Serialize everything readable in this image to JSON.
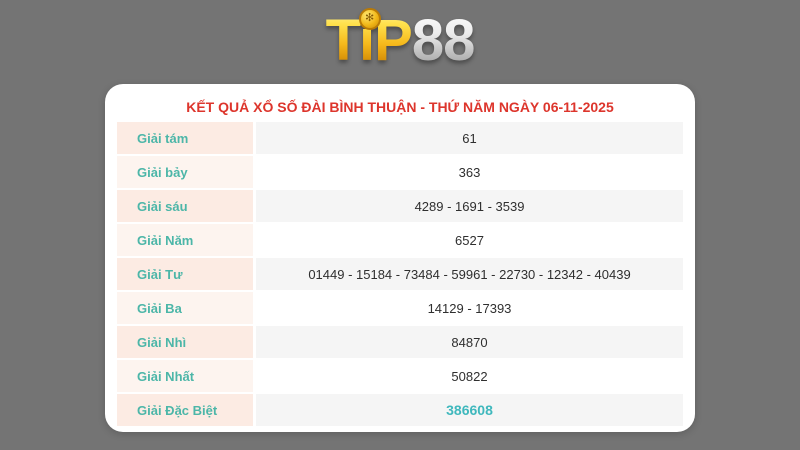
{
  "logo": {
    "brand": "TIP88",
    "gold_text": "TiP",
    "silver_text": "88",
    "chip_icon": "casino-chip-icon",
    "chip_glyph": "✻"
  },
  "header": {
    "title": "KẾT QUẢ XỔ SỐ ĐÀI BÌNH THUẬN - THỨ NĂM NGÀY 06-11-2025"
  },
  "results_table": {
    "rows": [
      {
        "label": "Giải tám",
        "value": "61"
      },
      {
        "label": "Giải bảy",
        "value": "363"
      },
      {
        "label": "Giải sáu",
        "value": "4289 - 1691 - 3539"
      },
      {
        "label": "Giải Năm",
        "value": "6527"
      },
      {
        "label": "Giải Tư",
        "value": "01449 - 15184 - 73484 - 59961 - 22730 - 12342 - 40439"
      },
      {
        "label": "Giải Ba",
        "value": "14129 - 17393"
      },
      {
        "label": "Giải Nhì",
        "value": "84870"
      },
      {
        "label": "Giải Nhất",
        "value": "50822"
      },
      {
        "label": "Giải Đặc Biệt",
        "value": "386608"
      }
    ]
  },
  "colors": {
    "page_background": "#747474",
    "title_red": "#dd352c",
    "label_teal": "#4cb6a8",
    "special_value_teal": "#3fb8bd",
    "label_bg_odd": "#fcebe3",
    "label_bg_even": "#fdf4ef",
    "value_bg_odd": "#f5f5f5",
    "value_bg_even": "#ffffff",
    "logo_gold": "#f6b91c",
    "logo_silver": "#bdbdbd"
  }
}
